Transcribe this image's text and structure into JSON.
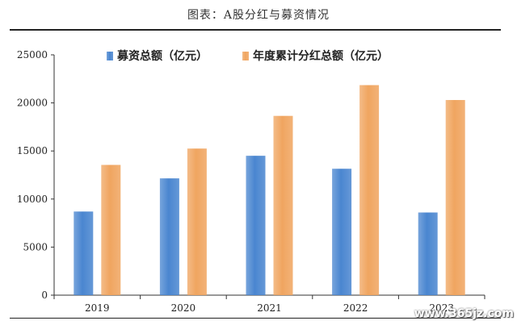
{
  "page": {
    "title": "图表：A股分红与募资情况",
    "watermark": "www.365jz.com"
  },
  "chart_data": {
    "type": "bar",
    "categories": [
      "2019",
      "2020",
      "2021",
      "2022",
      "2023"
    ],
    "series": [
      {
        "name": "募资总额（亿元）",
        "values": [
          8700,
          12150,
          14500,
          13150,
          8600
        ],
        "color": "#4a86d0"
      },
      {
        "name": "年度累计分红总额（亿元）",
        "values": [
          13550,
          15250,
          18650,
          21850,
          20300
        ],
        "color": "#f0a560"
      }
    ],
    "ylim": [
      0,
      25000
    ],
    "yticks": [
      0,
      5000,
      10000,
      15000,
      20000,
      25000
    ],
    "legend": "top",
    "grid": false
  }
}
